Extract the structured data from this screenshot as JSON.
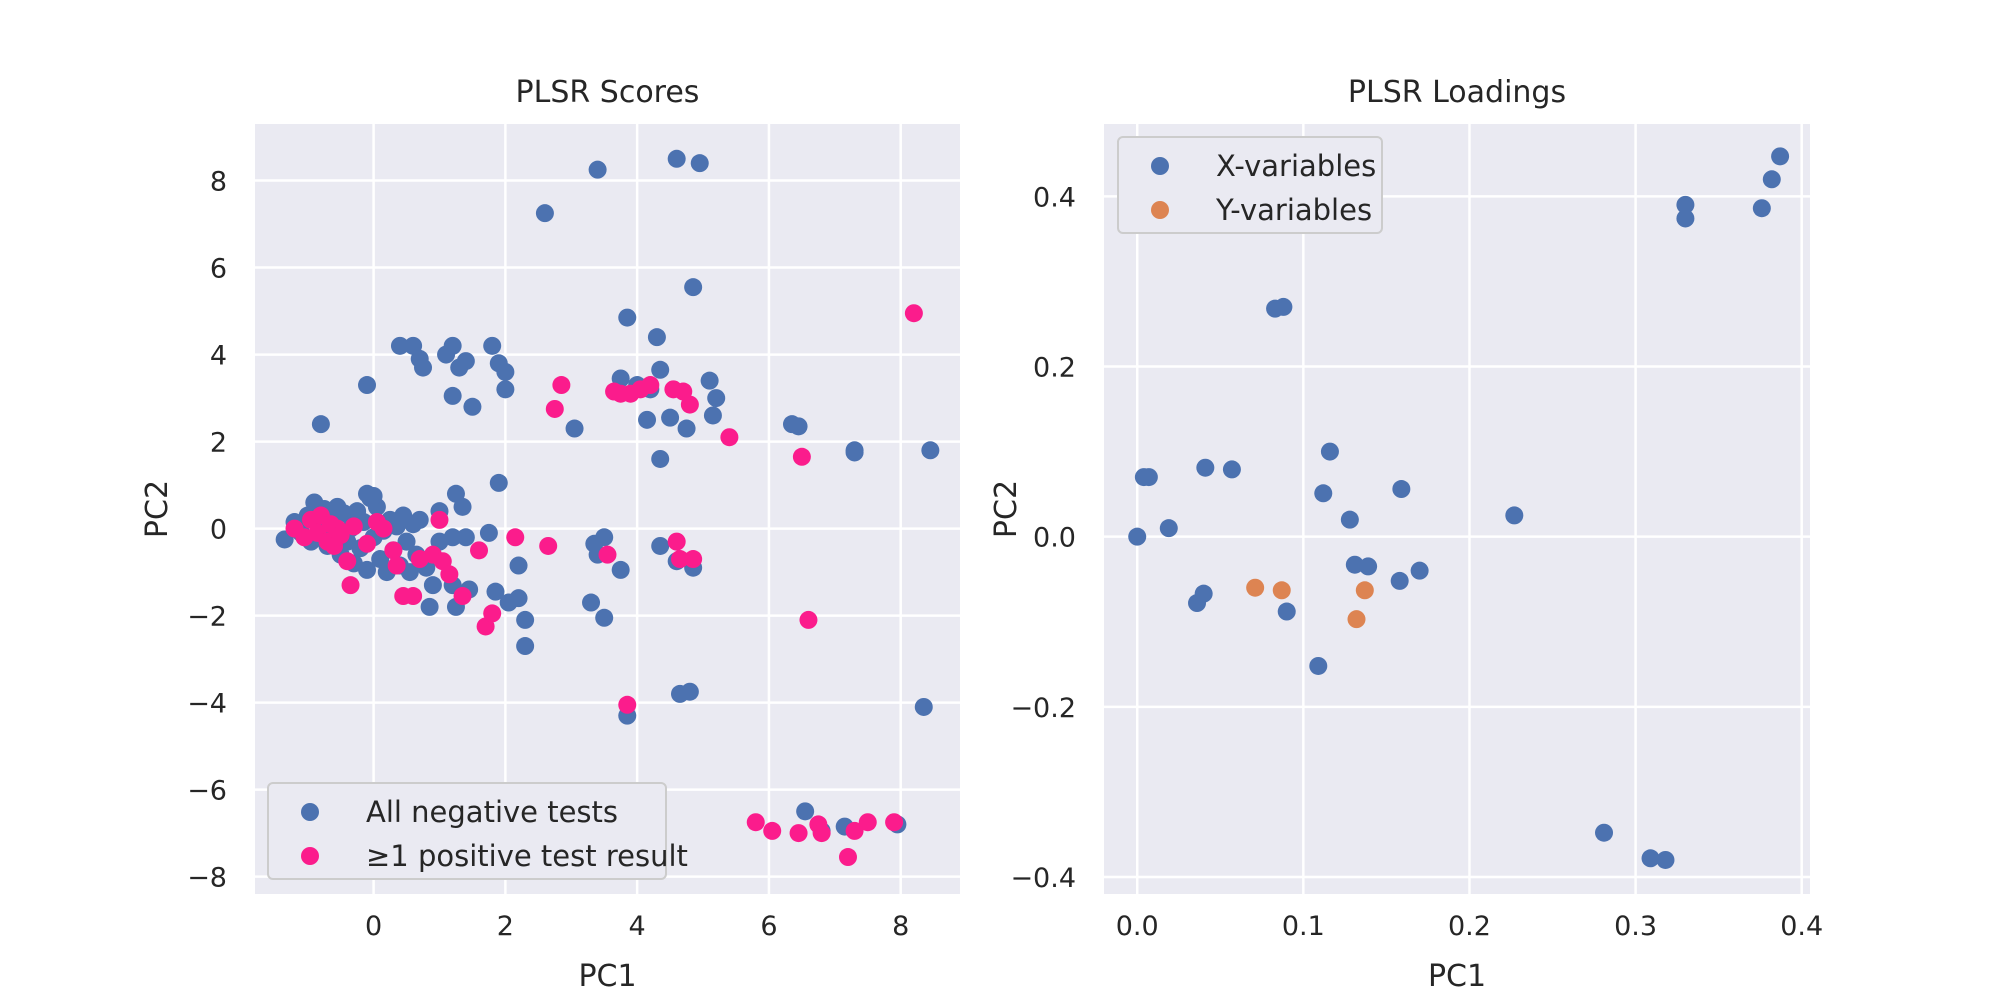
{
  "chart_data": [
    {
      "type": "scatter",
      "title": "PLSR Scores",
      "xlabel": "PC1",
      "ylabel": "PC2",
      "xlim": [
        -1.8,
        8.9
      ],
      "ylim": [
        -8.4,
        9.3
      ],
      "xticks": [
        0,
        2,
        4,
        6,
        8
      ],
      "xtick_labels": [
        "0",
        "2",
        "4",
        "6",
        "8"
      ],
      "yticks": [
        -8,
        -6,
        -4,
        -2,
        0,
        2,
        4,
        6,
        8
      ],
      "ytick_labels": [
        "−8",
        "−6",
        "−4",
        "−2",
        "0",
        "2",
        "4",
        "6",
        "8"
      ],
      "grid": true,
      "legend_position": "bottom-left",
      "series": [
        {
          "name": "All negative tests",
          "color": "#4c72b0",
          "points": [
            [
              -1.35,
              -0.25
            ],
            [
              -1.2,
              0.15
            ],
            [
              -1.1,
              -0.1
            ],
            [
              -1.0,
              0.3
            ],
            [
              -0.95,
              -0.3
            ],
            [
              -0.9,
              0.6
            ],
            [
              -0.85,
              0.1
            ],
            [
              -0.8,
              -0.2
            ],
            [
              -0.75,
              0.45
            ],
            [
              -0.7,
              -0.4
            ],
            [
              -0.65,
              0.2
            ],
            [
              -0.6,
              -0.1
            ],
            [
              -0.55,
              0.5
            ],
            [
              -0.5,
              -0.6
            ],
            [
              -0.45,
              0.35
            ],
            [
              -0.4,
              -0.3
            ],
            [
              -0.35,
              0.0
            ],
            [
              -0.3,
              -0.8
            ],
            [
              -0.25,
              0.4
            ],
            [
              -0.2,
              -0.45
            ],
            [
              -0.15,
              0.15
            ],
            [
              -0.1,
              -0.95
            ],
            [
              -0.05,
              0.7
            ],
            [
              0.0,
              -0.2
            ],
            [
              0.05,
              0.5
            ],
            [
              0.1,
              -0.7
            ],
            [
              0.15,
              -0.05
            ],
            [
              0.2,
              -1.0
            ],
            [
              0.25,
              0.2
            ],
            [
              0.3,
              -0.5
            ],
            [
              0.35,
              0.05
            ],
            [
              0.4,
              -0.85
            ],
            [
              0.45,
              0.3
            ],
            [
              0.5,
              -0.3
            ],
            [
              0.55,
              -1.0
            ],
            [
              0.6,
              0.1
            ],
            [
              0.65,
              -0.6
            ],
            [
              0.7,
              0.2
            ],
            [
              0.8,
              -0.9
            ],
            [
              0.9,
              -1.3
            ],
            [
              1.0,
              -0.3
            ],
            [
              -0.1,
              0.8
            ],
            [
              0.0,
              0.75
            ],
            [
              -0.8,
              2.4
            ],
            [
              -0.1,
              3.3
            ],
            [
              0.4,
              4.2
            ],
            [
              0.6,
              4.2
            ],
            [
              0.7,
              3.9
            ],
            [
              0.75,
              3.7
            ],
            [
              1.1,
              4.0
            ],
            [
              1.2,
              4.2
            ],
            [
              1.3,
              3.7
            ],
            [
              1.4,
              3.85
            ],
            [
              1.2,
              3.05
            ],
            [
              1.5,
              2.8
            ],
            [
              1.8,
              4.2
            ],
            [
              1.9,
              3.8
            ],
            [
              2.0,
              3.6
            ],
            [
              2.0,
              3.2
            ],
            [
              1.9,
              1.05
            ],
            [
              1.25,
              0.8
            ],
            [
              1.35,
              0.5
            ],
            [
              1.2,
              -0.2
            ],
            [
              1.4,
              -0.2
            ],
            [
              1.75,
              -0.1
            ],
            [
              1.0,
              0.4
            ],
            [
              0.85,
              -1.8
            ],
            [
              1.25,
              -1.8
            ],
            [
              1.45,
              -1.4
            ],
            [
              1.2,
              -1.3
            ],
            [
              1.85,
              -1.45
            ],
            [
              2.05,
              -1.7
            ],
            [
              2.2,
              -1.6
            ],
            [
              2.2,
              -0.85
            ],
            [
              2.3,
              -2.1
            ],
            [
              2.3,
              -2.7
            ],
            [
              2.6,
              7.25
            ],
            [
              3.4,
              8.25
            ],
            [
              4.6,
              8.5
            ],
            [
              4.95,
              8.4
            ],
            [
              4.85,
              5.55
            ],
            [
              3.85,
              4.85
            ],
            [
              4.3,
              4.4
            ],
            [
              4.35,
              3.65
            ],
            [
              3.75,
              3.45
            ],
            [
              4.0,
              3.3
            ],
            [
              4.2,
              3.2
            ],
            [
              5.1,
              3.4
            ],
            [
              5.2,
              3.0
            ],
            [
              5.15,
              2.6
            ],
            [
              4.5,
              2.55
            ],
            [
              4.15,
              2.5
            ],
            [
              4.75,
              2.3
            ],
            [
              3.05,
              2.3
            ],
            [
              4.35,
              1.6
            ],
            [
              6.35,
              2.4
            ],
            [
              6.45,
              2.35
            ],
            [
              7.3,
              1.8
            ],
            [
              7.3,
              1.75
            ],
            [
              8.45,
              1.8
            ],
            [
              3.35,
              -0.35
            ],
            [
              3.5,
              -0.2
            ],
            [
              3.4,
              -0.6
            ],
            [
              3.75,
              -0.95
            ],
            [
              3.3,
              -1.7
            ],
            [
              3.5,
              -2.05
            ],
            [
              4.35,
              -0.4
            ],
            [
              4.6,
              -0.75
            ],
            [
              4.85,
              -0.9
            ],
            [
              4.65,
              -3.8
            ],
            [
              4.8,
              -3.75
            ],
            [
              3.85,
              -4.3
            ],
            [
              8.35,
              -4.1
            ],
            [
              6.55,
              -6.5
            ],
            [
              6.8,
              -6.95
            ],
            [
              7.15,
              -6.85
            ],
            [
              7.95,
              -6.8
            ]
          ]
        },
        {
          "name": "≥1 positive test result",
          "color": "#fb1c8c",
          "points": [
            [
              -1.2,
              0.0
            ],
            [
              -1.05,
              -0.2
            ],
            [
              -0.95,
              0.2
            ],
            [
              -0.85,
              -0.1
            ],
            [
              -0.8,
              0.3
            ],
            [
              -0.7,
              -0.3
            ],
            [
              -0.65,
              0.1
            ],
            [
              -0.6,
              -0.4
            ],
            [
              -0.55,
              0.0
            ],
            [
              -0.5,
              -0.15
            ],
            [
              -0.4,
              -0.75
            ],
            [
              -0.35,
              -1.3
            ],
            [
              -0.3,
              0.05
            ],
            [
              -0.1,
              -0.35
            ],
            [
              0.05,
              0.15
            ],
            [
              0.15,
              0.0
            ],
            [
              0.3,
              -0.5
            ],
            [
              0.35,
              -0.85
            ],
            [
              0.45,
              -1.55
            ],
            [
              0.6,
              -1.55
            ],
            [
              0.7,
              -0.7
            ],
            [
              0.9,
              -0.6
            ],
            [
              1.0,
              0.2
            ],
            [
              1.05,
              -0.75
            ],
            [
              1.15,
              -1.05
            ],
            [
              1.35,
              -1.55
            ],
            [
              1.6,
              -0.5
            ],
            [
              1.7,
              -2.25
            ],
            [
              1.8,
              -1.95
            ],
            [
              2.15,
              -0.2
            ],
            [
              2.65,
              -0.4
            ],
            [
              2.75,
              2.75
            ],
            [
              2.85,
              3.3
            ],
            [
              3.55,
              -0.6
            ],
            [
              3.65,
              3.15
            ],
            [
              3.75,
              3.1
            ],
            [
              3.9,
              3.1
            ],
            [
              4.05,
              3.2
            ],
            [
              4.2,
              3.3
            ],
            [
              4.55,
              3.2
            ],
            [
              4.7,
              3.15
            ],
            [
              4.8,
              2.85
            ],
            [
              4.6,
              -0.3
            ],
            [
              4.65,
              -0.7
            ],
            [
              4.85,
              -0.7
            ],
            [
              5.4,
              2.1
            ],
            [
              6.5,
              1.65
            ],
            [
              6.6,
              -2.1
            ],
            [
              3.85,
              -4.05
            ],
            [
              5.8,
              -6.75
            ],
            [
              6.05,
              -6.95
            ],
            [
              6.45,
              -7.0
            ],
            [
              6.75,
              -6.8
            ],
            [
              6.8,
              -7.0
            ],
            [
              7.2,
              -7.55
            ],
            [
              7.3,
              -6.95
            ],
            [
              7.5,
              -6.75
            ],
            [
              7.9,
              -6.75
            ],
            [
              8.2,
              4.95
            ]
          ]
        }
      ]
    },
    {
      "type": "scatter",
      "title": "PLSR Loadings",
      "xlabel": "PC1",
      "ylabel": "PC2",
      "xlim": [
        -0.02,
        0.405
      ],
      "ylim": [
        -0.42,
        0.485
      ],
      "xticks": [
        0.0,
        0.1,
        0.2,
        0.3,
        0.4
      ],
      "xtick_labels": [
        "0.0",
        "0.1",
        "0.2",
        "0.3",
        "0.4"
      ],
      "yticks": [
        -0.4,
        -0.2,
        0.0,
        0.2,
        0.4
      ],
      "ytick_labels": [
        "−0.4",
        "−0.2",
        "0.0",
        "0.2",
        "0.4"
      ],
      "grid": true,
      "legend_position": "top-left",
      "series": [
        {
          "name": "X-variables",
          "color": "#4c72b0",
          "points": [
            [
              0.0,
              0.0
            ],
            [
              0.004,
              0.07
            ],
            [
              0.007,
              0.07
            ],
            [
              0.019,
              0.01
            ],
            [
              0.036,
              -0.078
            ],
            [
              0.04,
              -0.067
            ],
            [
              0.041,
              0.081
            ],
            [
              0.057,
              0.079
            ],
            [
              0.083,
              0.268
            ],
            [
              0.088,
              0.27
            ],
            [
              0.09,
              -0.088
            ],
            [
              0.109,
              -0.152
            ],
            [
              0.112,
              0.051
            ],
            [
              0.116,
              0.1
            ],
            [
              0.128,
              0.02
            ],
            [
              0.131,
              -0.033
            ],
            [
              0.139,
              -0.035
            ],
            [
              0.159,
              0.056
            ],
            [
              0.158,
              -0.052
            ],
            [
              0.17,
              -0.04
            ],
            [
              0.227,
              0.025
            ],
            [
              0.281,
              -0.348
            ],
            [
              0.309,
              -0.378
            ],
            [
              0.318,
              -0.38
            ],
            [
              0.33,
              0.374
            ],
            [
              0.33,
              0.39
            ],
            [
              0.376,
              0.386
            ],
            [
              0.382,
              0.42
            ],
            [
              0.387,
              0.447
            ]
          ]
        },
        {
          "name": "Y-variables",
          "color": "#dd8452",
          "points": [
            [
              0.071,
              -0.06
            ],
            [
              0.087,
              -0.063
            ],
            [
              0.132,
              -0.097
            ],
            [
              0.137,
              -0.063
            ]
          ]
        }
      ]
    }
  ]
}
